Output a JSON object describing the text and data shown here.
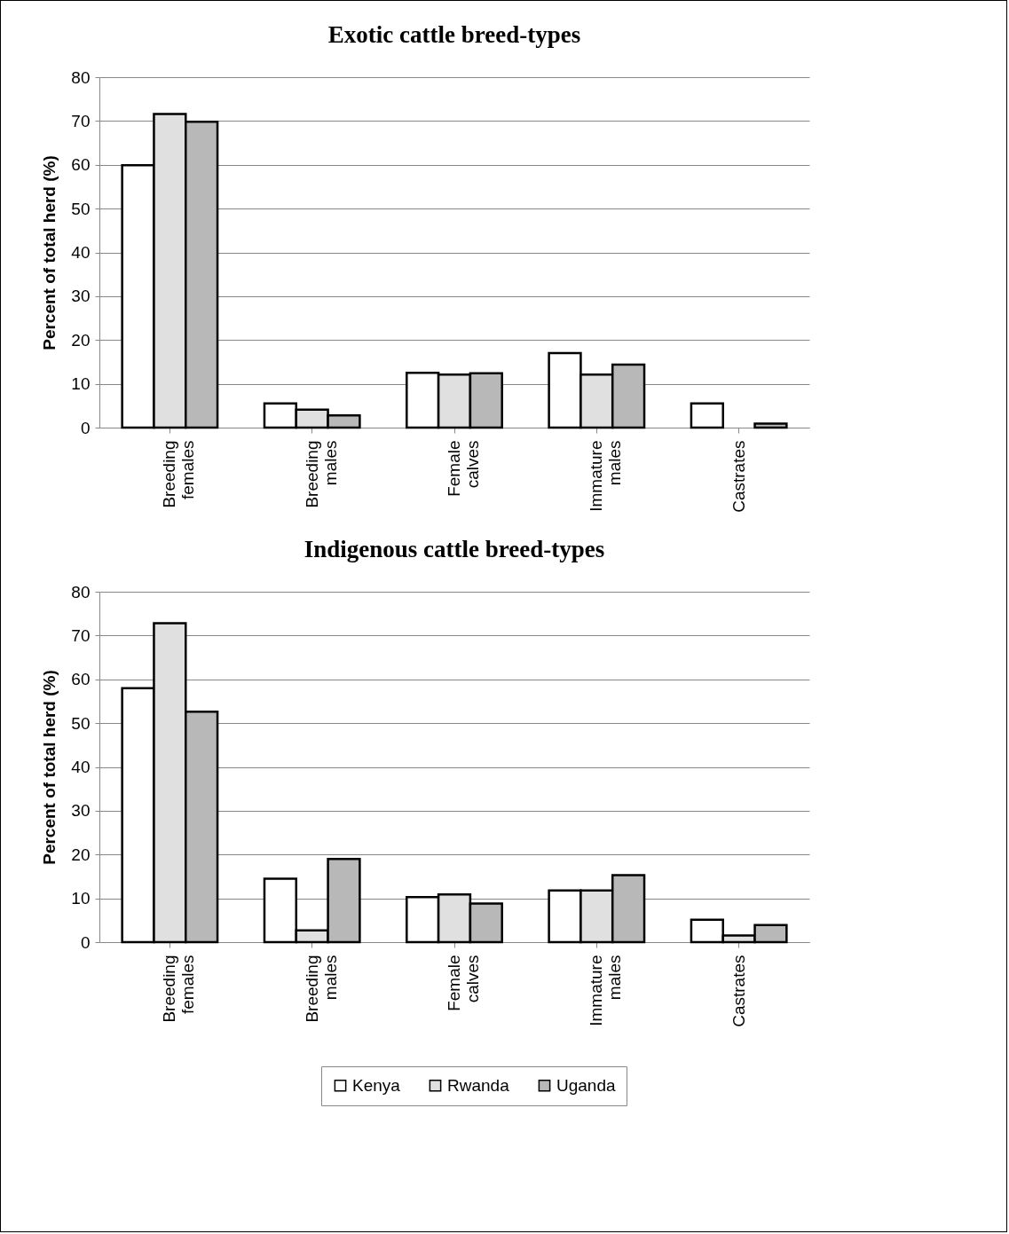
{
  "chart_data": [
    {
      "type": "bar",
      "title": "Exotic cattle breed-types",
      "ylabel": "Percent of total herd  (%)",
      "categories": [
        "Breeding females",
        "Breeding males",
        "Female calves",
        "Immature males",
        "Castrates"
      ],
      "series": [
        {
          "color": "#ffffff",
          "values": [
            59.9,
            5.5,
            12.5,
            17,
            5.5
          ]
        },
        {
          "color": "#e0e0e0",
          "values": [
            71.6,
            4.1,
            12.1,
            12.1,
            0
          ]
        },
        {
          "color": "#b8b8b8",
          "values": [
            69.8,
            2.8,
            12.4,
            14.4,
            0.9
          ]
        }
      ],
      "ylim": [
        0,
        80
      ],
      "yticks": [
        0,
        10,
        20,
        30,
        40,
        50,
        60,
        70,
        80
      ],
      "grid": "y",
      "legend": false
    },
    {
      "type": "bar",
      "title": "Indigenous cattle breed-types",
      "ylabel": "Percent of total herd  (%)",
      "categories": [
        "Breeding females",
        "Breeding males",
        "Female calves",
        "Immature males",
        "Castrates"
      ],
      "series": [
        {
          "name": "Kenya",
          "color": "#ffffff",
          "values": [
            58,
            14.5,
            10.3,
            11.8,
            5.1
          ]
        },
        {
          "name": "Rwanda",
          "color": "#e0e0e0",
          "values": [
            72.8,
            2.7,
            10.9,
            11.8,
            1.5
          ]
        },
        {
          "name": "Uganda",
          "color": "#b8b8b8",
          "values": [
            52.6,
            19,
            8.8,
            15.3,
            3.9
          ]
        }
      ],
      "ylim": [
        0,
        80
      ],
      "yticks": [
        0,
        10,
        20,
        30,
        40,
        50,
        60,
        70,
        80
      ],
      "grid": "y",
      "legend": "bottom"
    }
  ]
}
